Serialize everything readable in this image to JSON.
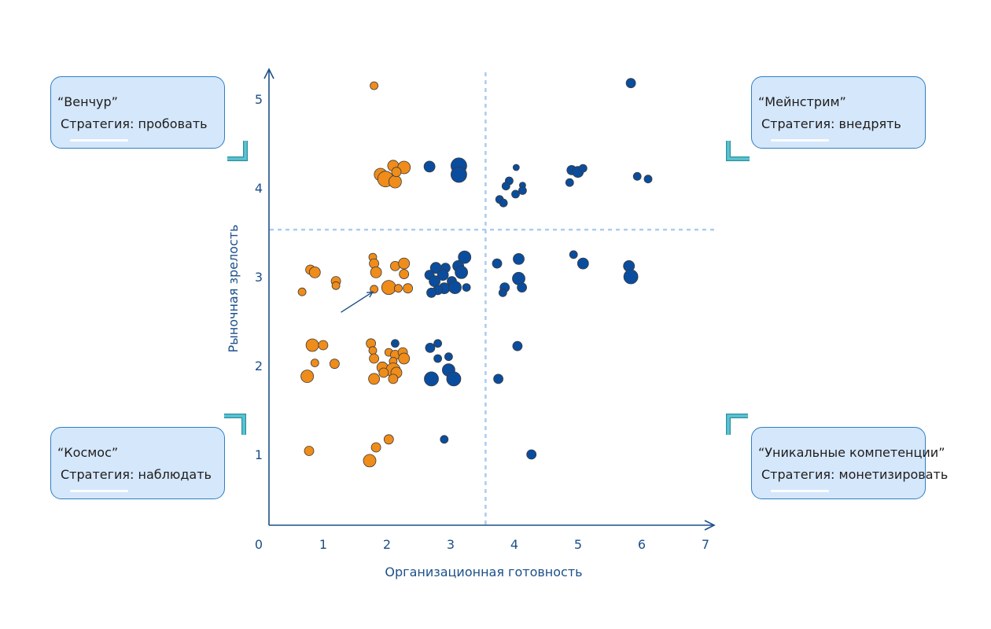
{
  "quadrants": {
    "top_left": {
      "name": "“Венчур”",
      "strategy": "Стратегия: пробовать"
    },
    "top_right": {
      "name": "“Мейнстрим”",
      "strategy": "Стратегия: внедрять"
    },
    "bottom_left": {
      "name": "“Космос”",
      "strategy": "Стратегия: наблюдать"
    },
    "bottom_right": {
      "name": "“Уникальные компетенции”",
      "strategy": "Стратегия: монетизировать"
    }
  },
  "colors": {
    "orange": "#ef8c1a",
    "blue": "#0a4d9e",
    "axis": "#1b4f8a",
    "divider": "#a9cdf2",
    "callout_fill": "#d5e7fb",
    "callout_border": "#2f7fc1",
    "bracket": "#5cc3d0"
  },
  "chart_data": {
    "type": "scatter",
    "xlabel": "Организационная готовность",
    "ylabel": "Рыночная зрелость",
    "xlim": [
      0,
      7
    ],
    "ylim": [
      0.3,
      5.5
    ],
    "x_ticks": [
      "0",
      "1",
      "2",
      "3",
      "4",
      "5",
      "6",
      "7"
    ],
    "y_ticks": [
      "1",
      "2",
      "3",
      "4",
      "5"
    ],
    "dividers": {
      "x": 3.4,
      "y": 3.53
    },
    "grid": false,
    "legend": "none",
    "arrow": {
      "from": [
        1.13,
        2.6
      ],
      "to": [
        1.63,
        2.83
      ]
    },
    "series": [
      {
        "color": "orange",
        "points": [
          [
            1.65,
            5.15,
            5
          ],
          [
            1.75,
            4.15,
            8
          ],
          [
            1.95,
            4.25,
            7
          ],
          [
            2.12,
            4.23,
            8
          ],
          [
            1.83,
            4.1,
            10
          ],
          [
            1.98,
            4.07,
            8
          ],
          [
            2.0,
            4.18,
            6
          ],
          [
            0.65,
            3.08,
            6
          ],
          [
            0.72,
            3.05,
            7
          ],
          [
            1.05,
            2.95,
            6
          ],
          [
            1.05,
            2.9,
            5
          ],
          [
            0.52,
            2.83,
            5
          ],
          [
            1.63,
            3.22,
            5
          ],
          [
            1.65,
            3.15,
            6
          ],
          [
            1.98,
            3.12,
            6
          ],
          [
            2.12,
            3.15,
            7
          ],
          [
            1.68,
            3.05,
            7
          ],
          [
            2.12,
            3.03,
            6
          ],
          [
            1.88,
            2.88,
            9
          ],
          [
            1.65,
            2.86,
            5
          ],
          [
            2.03,
            2.87,
            5
          ],
          [
            2.18,
            2.87,
            6
          ],
          [
            0.68,
            2.23,
            8
          ],
          [
            0.85,
            2.23,
            6
          ],
          [
            0.72,
            2.03,
            5
          ],
          [
            1.03,
            2.02,
            6
          ],
          [
            0.6,
            1.88,
            8
          ],
          [
            1.6,
            2.25,
            6
          ],
          [
            1.63,
            2.17,
            5
          ],
          [
            1.65,
            2.08,
            6
          ],
          [
            1.88,
            2.15,
            5
          ],
          [
            1.98,
            2.12,
            6
          ],
          [
            2.1,
            2.15,
            6
          ],
          [
            2.12,
            2.08,
            7
          ],
          [
            1.95,
            2.05,
            5
          ],
          [
            1.78,
            1.98,
            7
          ],
          [
            1.95,
            1.95,
            9
          ],
          [
            1.8,
            1.92,
            6
          ],
          [
            2.0,
            1.92,
            7
          ],
          [
            1.65,
            1.85,
            7
          ],
          [
            1.95,
            1.85,
            6
          ],
          [
            0.63,
            1.04,
            6
          ],
          [
            1.68,
            1.08,
            6
          ],
          [
            1.88,
            1.17,
            6
          ],
          [
            1.58,
            0.93,
            8
          ]
        ]
      },
      {
        "color": "blue",
        "points": [
          [
            5.68,
            5.18,
            6
          ],
          [
            2.52,
            4.24,
            7
          ],
          [
            2.98,
            4.25,
            10
          ],
          [
            2.98,
            4.15,
            10
          ],
          [
            3.88,
            4.23,
            4
          ],
          [
            3.77,
            4.08,
            5
          ],
          [
            3.72,
            4.02,
            5
          ],
          [
            3.98,
            4.03,
            4
          ],
          [
            3.98,
            3.97,
            5
          ],
          [
            3.87,
            3.93,
            5
          ],
          [
            3.62,
            3.87,
            5
          ],
          [
            3.68,
            3.83,
            5
          ],
          [
            4.75,
            4.2,
            6
          ],
          [
            4.85,
            4.18,
            7
          ],
          [
            4.93,
            4.22,
            5
          ],
          [
            4.72,
            4.06,
            5
          ],
          [
            5.78,
            4.13,
            5
          ],
          [
            5.95,
            4.1,
            5
          ],
          [
            3.07,
            3.22,
            8
          ],
          [
            2.97,
            3.12,
            7
          ],
          [
            2.77,
            3.1,
            6
          ],
          [
            2.62,
            3.1,
            7
          ],
          [
            2.73,
            3.02,
            7
          ],
          [
            2.52,
            3.02,
            6
          ],
          [
            3.02,
            3.05,
            8
          ],
          [
            2.87,
            2.95,
            6
          ],
          [
            2.6,
            2.95,
            7
          ],
          [
            2.75,
            2.87,
            7
          ],
          [
            2.65,
            2.85,
            6
          ],
          [
            2.92,
            2.88,
            8
          ],
          [
            3.1,
            2.88,
            5
          ],
          [
            2.55,
            2.82,
            6
          ],
          [
            3.58,
            3.15,
            6
          ],
          [
            3.92,
            3.2,
            7
          ],
          [
            3.7,
            2.88,
            6
          ],
          [
            3.92,
            2.98,
            8
          ],
          [
            3.97,
            2.88,
            6
          ],
          [
            3.67,
            2.82,
            5
          ],
          [
            4.78,
            3.25,
            5
          ],
          [
            4.93,
            3.15,
            7
          ],
          [
            5.65,
            3.12,
            7
          ],
          [
            5.68,
            3.0,
            9
          ],
          [
            2.53,
            2.2,
            6
          ],
          [
            2.65,
            2.25,
            5
          ],
          [
            2.65,
            2.08,
            5
          ],
          [
            2.82,
            2.1,
            5
          ],
          [
            2.82,
            1.95,
            8
          ],
          [
            2.55,
            1.85,
            9
          ],
          [
            2.9,
            1.85,
            9
          ],
          [
            3.6,
            1.85,
            6
          ],
          [
            3.9,
            2.22,
            6
          ],
          [
            1.98,
            2.25,
            5
          ],
          [
            2.75,
            1.17,
            5
          ],
          [
            4.12,
            1.0,
            6
          ]
        ]
      }
    ]
  }
}
